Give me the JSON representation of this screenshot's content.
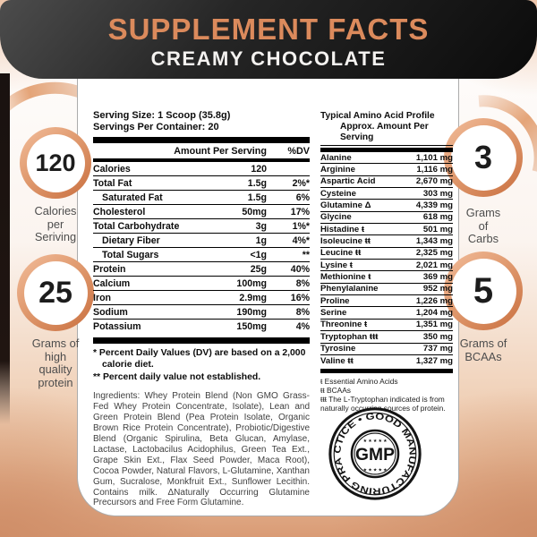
{
  "header": {
    "title": "SUPPLEMENT FACTS",
    "subtitle": "CREAMY CHOCOLATE"
  },
  "badges": {
    "left": [
      {
        "value": "120",
        "label": "Calories\nper\nSeriving"
      },
      {
        "value": "25",
        "label": "Grams of\nhigh\nquality\nprotein"
      }
    ],
    "right": [
      {
        "value": "3",
        "label": "Grams\nof\nCarbs"
      },
      {
        "value": "5",
        "label": "Grams of\nBCAAs"
      }
    ]
  },
  "facts": {
    "serving_size": "Serving Size: 1 Scoop (35.8g)",
    "servings_per_container": "Servings Per Container: 20",
    "columns": {
      "amount": "Amount Per Serving",
      "dv": "%DV"
    },
    "rows": [
      {
        "name": "Calories",
        "amount": "120",
        "dv": "",
        "indent": false
      },
      {
        "name": "Total Fat",
        "amount": "1.5g",
        "dv": "2%*",
        "indent": false
      },
      {
        "name": "Saturated Fat",
        "amount": "1.5g",
        "dv": "6%",
        "indent": true
      },
      {
        "name": "Cholesterol",
        "amount": "50mg",
        "dv": "17%",
        "indent": false
      },
      {
        "name": "Total Carbohydrate",
        "amount": "3g",
        "dv": "1%*",
        "indent": false
      },
      {
        "name": "Dietary Fiber",
        "amount": "1g",
        "dv": "4%*",
        "indent": true
      },
      {
        "name": "Total Sugars",
        "amount": "<1g",
        "dv": "**",
        "indent": true
      },
      {
        "name": "Protein",
        "amount": "25g",
        "dv": "40%",
        "indent": false
      },
      {
        "name": "Calcium",
        "amount": "100mg",
        "dv": "8%",
        "indent": false
      },
      {
        "name": "Iron",
        "amount": "2.9mg",
        "dv": "16%",
        "indent": false
      },
      {
        "name": "Sodium",
        "amount": "190mg",
        "dv": "8%",
        "indent": false
      },
      {
        "name": "Potassium",
        "amount": "150mg",
        "dv": "4%",
        "indent": false
      }
    ],
    "footnote1": "* Percent Daily Values (DV) are based on a 2,000 calorie diet.",
    "footnote2": "** Percent daily value not established.",
    "ingredients": "Ingredients: Whey Protein Blend (Non GMO Grass-Fed Whey Protein Concentrate, Isolate), Lean and Green Protein Blend (Pea Protein Isolate, Organic Brown Rice Protein Concentrate), Probiotic/Digestive Blend (Organic Spirulina, Beta Glucan, Amylase, Lactase, Lactobacilus Acidophilus, Green Tea Ext., Grape Skin Ext., Flax Seed Powder, Maca Root), Cocoa Powder, Natural Flavors, L-Glutamine, Xanthan Gum, Sucralose, Monkfruit Ext., Sunflower Lecithin. Contains milk. ΔNaturally Occurring Glutamine Precursors and Free Form Glutamine."
  },
  "amino": {
    "title": "Typical Amino Acid Profile",
    "subtitle": "Approx. Amount Per Serving",
    "rows": [
      {
        "name": "Alanine",
        "value": "1,101 mg"
      },
      {
        "name": "Arginine",
        "value": "1,116 mg"
      },
      {
        "name": "Aspartic Acid",
        "value": "2,670 mg"
      },
      {
        "name": "Cysteine",
        "value": "303 mg"
      },
      {
        "name": "Glutamine Δ",
        "value": "4,339 mg"
      },
      {
        "name": "Glycine",
        "value": "618 mg"
      },
      {
        "name": "Histadine ŧ",
        "value": "501 mg"
      },
      {
        "name": "Isoleucine ŧŧ",
        "value": "1,343 mg"
      },
      {
        "name": "Leucine ŧŧ",
        "value": "2,325 mg"
      },
      {
        "name": "Lysine ŧ",
        "value": "2,021 mg"
      },
      {
        "name": "Methionine ŧ",
        "value": "369 mg"
      },
      {
        "name": "Phenylalanine",
        "value": "952 mg"
      },
      {
        "name": "Proline",
        "value": "1,226 mg"
      },
      {
        "name": "Serine",
        "value": "1,204 mg"
      },
      {
        "name": "Threonine ŧ",
        "value": "1,351 mg"
      },
      {
        "name": "Tryptophan ŧŧŧ",
        "value": "350 mg"
      },
      {
        "name": "Tyrosine",
        "value": "737 mg"
      },
      {
        "name": "Valine ŧŧ",
        "value": "1,327 mg"
      }
    ],
    "footnotes": [
      "ŧ Essential Amino Acids",
      "ŧŧ BCAAs",
      "ŧŧŧ The L-Tryptophan indicated is from naturally occurring sources of protein."
    ]
  },
  "seal": {
    "arc_text": "CTICE • GOOD MANUFACTURING PRA",
    "center": "GMP",
    "stars": "★ ★ ★ ★ ★"
  },
  "colors": {
    "accent_orange": "#DB8A5C",
    "ring_light": "#F2BD9B",
    "ring_dark": "#C96F3F",
    "header_dark": "#0B0B0B"
  }
}
